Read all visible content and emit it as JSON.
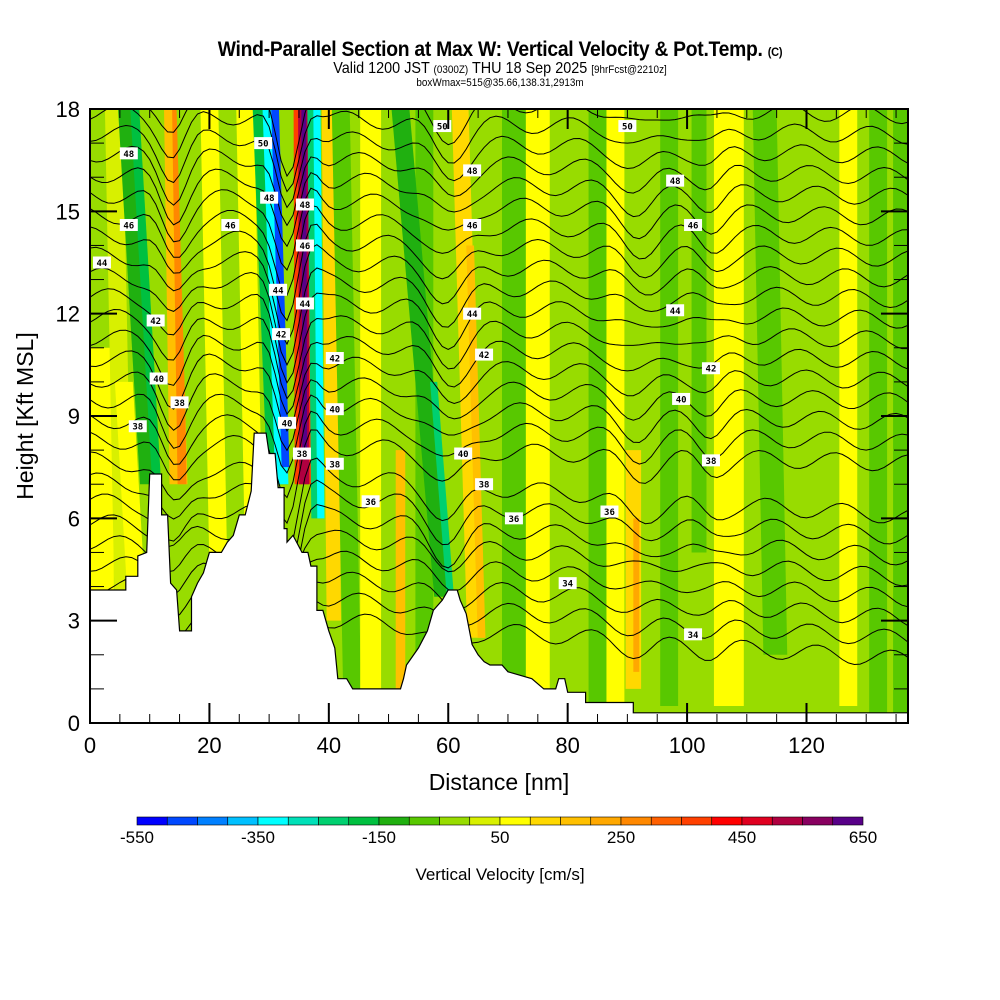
{
  "header": {
    "title": "Wind-Parallel Section at Max W: Vertical Velocity & Pot.Temp.",
    "copyright": "(C)",
    "valid_prefix": "Valid 1200 JST",
    "valid_utc": "(0300Z)",
    "valid_date": "THU 18 Sep 2025",
    "forecast": "[9hrFcst@2210z]",
    "box_info": "boxWmax=515@35.66,138.31,2913m"
  },
  "chart_data": {
    "type": "heatmap",
    "title": "Wind-Parallel Section at Max W: Vertical Velocity & Pot.Temp.",
    "xlabel": "Distance [nm]",
    "ylabel": "Height [Kft MSL]",
    "xlim": [
      0,
      137
    ],
    "ylim": [
      0,
      18
    ],
    "x_ticks": [
      0,
      20,
      40,
      60,
      80,
      100,
      120
    ],
    "y_ticks": [
      0,
      3,
      6,
      9,
      12,
      15,
      18
    ],
    "grid": false,
    "colorbar": {
      "title": "Vertical Velocity [cm/s]",
      "placement": "bottom",
      "min": -550,
      "max": 650,
      "step": 50,
      "tick_labels": [
        -550,
        -350,
        -150,
        50,
        250,
        450,
        650
      ],
      "colors": [
        "#0000ff",
        "#0048ff",
        "#0080ff",
        "#00c0ff",
        "#00ffff",
        "#00e0b8",
        "#00d070",
        "#00c040",
        "#20b010",
        "#58c800",
        "#98dc00",
        "#d8f000",
        "#ffff00",
        "#ffd800",
        "#ffc000",
        "#ffa800",
        "#ff8800",
        "#ff6000",
        "#ff4000",
        "#ff0000",
        "#e00020",
        "#b00040",
        "#880060",
        "#580088"
      ]
    },
    "contour_field": "Potential Temperature",
    "contour_levels": [
      34,
      36,
      38,
      40,
      42,
      44,
      46,
      48,
      50
    ],
    "contour_labels": [
      {
        "value": 48,
        "x": 6.5,
        "y": 16.7
      },
      {
        "value": 46,
        "x": 6.5,
        "y": 14.6
      },
      {
        "value": 44,
        "x": 2,
        "y": 13.5
      },
      {
        "value": 42,
        "x": 11,
        "y": 11.8
      },
      {
        "value": 40,
        "x": 11.5,
        "y": 10.1
      },
      {
        "value": 38,
        "x": 15,
        "y": 9.4
      },
      {
        "value": 38,
        "x": 8,
        "y": 8.7
      },
      {
        "value": 50,
        "x": 29,
        "y": 17.0
      },
      {
        "value": 48,
        "x": 30,
        "y": 15.4
      },
      {
        "value": 46,
        "x": 23.5,
        "y": 14.6
      },
      {
        "value": 44,
        "x": 31.5,
        "y": 12.7
      },
      {
        "value": 42,
        "x": 32,
        "y": 11.4
      },
      {
        "value": 40,
        "x": 33,
        "y": 8.8
      },
      {
        "value": 38,
        "x": 35.5,
        "y": 7.9
      },
      {
        "value": 48,
        "x": 36,
        "y": 15.2
      },
      {
        "value": 46,
        "x": 36,
        "y": 14.0
      },
      {
        "value": 44,
        "x": 36,
        "y": 12.3
      },
      {
        "value": 42,
        "x": 41,
        "y": 10.7
      },
      {
        "value": 40,
        "x": 41,
        "y": 9.2
      },
      {
        "value": 38,
        "x": 41,
        "y": 7.6
      },
      {
        "value": 36,
        "x": 47,
        "y": 6.5
      },
      {
        "value": 50,
        "x": 59,
        "y": 17.5
      },
      {
        "value": 48,
        "x": 64,
        "y": 16.2
      },
      {
        "value": 46,
        "x": 64,
        "y": 14.6
      },
      {
        "value": 44,
        "x": 64,
        "y": 12.0
      },
      {
        "value": 42,
        "x": 66,
        "y": 10.8
      },
      {
        "value": 40,
        "x": 62.5,
        "y": 7.9
      },
      {
        "value": 38,
        "x": 66,
        "y": 7.0
      },
      {
        "value": 36,
        "x": 71,
        "y": 6.0
      },
      {
        "value": 34,
        "x": 80,
        "y": 4.1
      },
      {
        "value": 36,
        "x": 87,
        "y": 6.2
      },
      {
        "value": 50,
        "x": 90,
        "y": 17.5
      },
      {
        "value": 48,
        "x": 98,
        "y": 15.9
      },
      {
        "value": 46,
        "x": 101,
        "y": 14.6
      },
      {
        "value": 44,
        "x": 98,
        "y": 12.1
      },
      {
        "value": 42,
        "x": 104,
        "y": 10.4
      },
      {
        "value": 40,
        "x": 99,
        "y": 9.5
      },
      {
        "value": 38,
        "x": 104,
        "y": 7.7
      },
      {
        "value": 34,
        "x": 101,
        "y": 2.6
      }
    ],
    "max_updraft_cm_s": 515
  }
}
